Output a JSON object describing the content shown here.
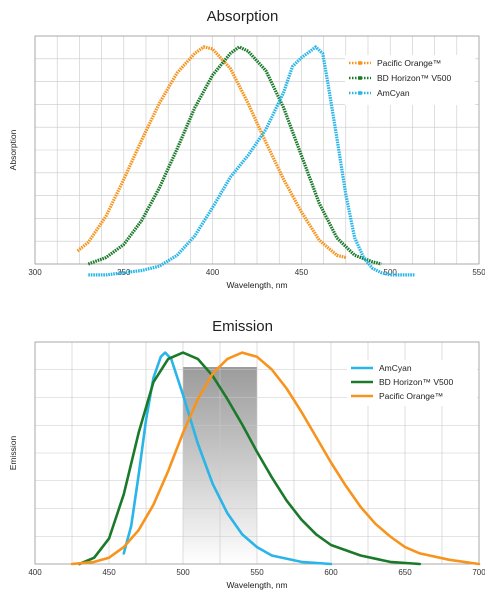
{
  "chart_data": [
    {
      "type": "line",
      "title": "Absorption",
      "xlabel": "Wavelength, nm",
      "ylabel": "Absorption",
      "xlim": [
        300,
        550
      ],
      "ylim": [
        0,
        1.05
      ],
      "xticks": [
        300,
        350,
        400,
        450,
        500,
        550
      ],
      "grid": true,
      "marker_style": "dotted-markers",
      "legend_position": "top-right",
      "series": [
        {
          "name": "Pacific Orange™",
          "color": "#f7941d",
          "points": [
            [
              324,
              0.06
            ],
            [
              330,
              0.1
            ],
            [
              340,
              0.22
            ],
            [
              350,
              0.39
            ],
            [
              360,
              0.57
            ],
            [
              370,
              0.74
            ],
            [
              380,
              0.88
            ],
            [
              390,
              0.97
            ],
            [
              395,
              1.0
            ],
            [
              400,
              0.99
            ],
            [
              410,
              0.9
            ],
            [
              420,
              0.74
            ],
            [
              430,
              0.56
            ],
            [
              440,
              0.39
            ],
            [
              450,
              0.24
            ],
            [
              460,
              0.11
            ],
            [
              470,
              0.04
            ],
            [
              475,
              0.03
            ]
          ]
        },
        {
          "name": "BD Horizon™ V500",
          "color": "#1a7a2a",
          "points": [
            [
              330,
              0.0
            ],
            [
              340,
              0.03
            ],
            [
              350,
              0.09
            ],
            [
              360,
              0.2
            ],
            [
              370,
              0.35
            ],
            [
              380,
              0.53
            ],
            [
              390,
              0.72
            ],
            [
              400,
              0.87
            ],
            [
              410,
              0.97
            ],
            [
              415,
              1.0
            ],
            [
              420,
              0.98
            ],
            [
              430,
              0.89
            ],
            [
              440,
              0.72
            ],
            [
              450,
              0.5
            ],
            [
              460,
              0.28
            ],
            [
              470,
              0.12
            ],
            [
              480,
              0.04
            ],
            [
              490,
              0.01
            ],
            [
              495,
              0.0
            ]
          ]
        },
        {
          "name": "AmCyan",
          "color": "#29b5e8",
          "points": [
            [
              330,
              -0.05
            ],
            [
              340,
              -0.05
            ],
            [
              350,
              -0.04
            ],
            [
              360,
              -0.03
            ],
            [
              370,
              -0.01
            ],
            [
              380,
              0.04
            ],
            [
              390,
              0.13
            ],
            [
              400,
              0.26
            ],
            [
              410,
              0.4
            ],
            [
              420,
              0.5
            ],
            [
              430,
              0.62
            ],
            [
              440,
              0.79
            ],
            [
              445,
              0.91
            ],
            [
              450,
              0.95
            ],
            [
              455,
              0.98
            ],
            [
              458,
              1.0
            ],
            [
              462,
              0.97
            ],
            [
              465,
              0.83
            ],
            [
              470,
              0.58
            ],
            [
              475,
              0.32
            ],
            [
              480,
              0.12
            ],
            [
              485,
              0.03
            ],
            [
              490,
              -0.02
            ],
            [
              495,
              -0.04
            ],
            [
              500,
              -0.05
            ],
            [
              514,
              -0.05
            ]
          ]
        }
      ]
    },
    {
      "type": "line",
      "title": "Emission",
      "xlabel": "Wavelength, nm",
      "ylabel": "Emission",
      "xlim": [
        400,
        700
      ],
      "ylim": [
        0,
        1.05
      ],
      "xticks": [
        400,
        450,
        500,
        550,
        600,
        650,
        700
      ],
      "grid": true,
      "shaded_band": [
        500,
        550
      ],
      "legend_position": "top-right",
      "series": [
        {
          "name": "AmCyan",
          "color": "#29b5e8",
          "points": [
            [
              460,
              0.05
            ],
            [
              465,
              0.18
            ],
            [
              470,
              0.42
            ],
            [
              475,
              0.68
            ],
            [
              480,
              0.88
            ],
            [
              485,
              0.98
            ],
            [
              488,
              1.0
            ],
            [
              492,
              0.97
            ],
            [
              500,
              0.8
            ],
            [
              510,
              0.57
            ],
            [
              520,
              0.38
            ],
            [
              530,
              0.24
            ],
            [
              540,
              0.14
            ],
            [
              550,
              0.08
            ],
            [
              560,
              0.04
            ],
            [
              580,
              0.01
            ],
            [
              600,
              0.0
            ]
          ]
        },
        {
          "name": "BD Horizon™ V500",
          "color": "#1a7a2a",
          "points": [
            [
              430,
              0.0
            ],
            [
              440,
              0.03
            ],
            [
              450,
              0.12
            ],
            [
              460,
              0.33
            ],
            [
              470,
              0.62
            ],
            [
              480,
              0.86
            ],
            [
              490,
              0.97
            ],
            [
              500,
              1.0
            ],
            [
              510,
              0.97
            ],
            [
              520,
              0.89
            ],
            [
              530,
              0.78
            ],
            [
              540,
              0.66
            ],
            [
              550,
              0.53
            ],
            [
              560,
              0.41
            ],
            [
              570,
              0.3
            ],
            [
              580,
              0.21
            ],
            [
              590,
              0.14
            ],
            [
              600,
              0.09
            ],
            [
              620,
              0.04
            ],
            [
              640,
              0.01
            ],
            [
              660,
              0.0
            ]
          ]
        },
        {
          "name": "Pacific Orange™",
          "color": "#f7941d",
          "points": [
            [
              425,
              0.0
            ],
            [
              440,
              0.01
            ],
            [
              450,
              0.03
            ],
            [
              460,
              0.08
            ],
            [
              470,
              0.16
            ],
            [
              480,
              0.28
            ],
            [
              490,
              0.44
            ],
            [
              500,
              0.62
            ],
            [
              510,
              0.78
            ],
            [
              520,
              0.9
            ],
            [
              530,
              0.97
            ],
            [
              540,
              1.0
            ],
            [
              550,
              0.98
            ],
            [
              560,
              0.92
            ],
            [
              570,
              0.83
            ],
            [
              580,
              0.72
            ],
            [
              590,
              0.6
            ],
            [
              600,
              0.48
            ],
            [
              610,
              0.37
            ],
            [
              620,
              0.27
            ],
            [
              630,
              0.19
            ],
            [
              640,
              0.13
            ],
            [
              650,
              0.08
            ],
            [
              660,
              0.05
            ],
            [
              680,
              0.02
            ],
            [
              700,
              0.0
            ]
          ]
        }
      ]
    }
  ]
}
